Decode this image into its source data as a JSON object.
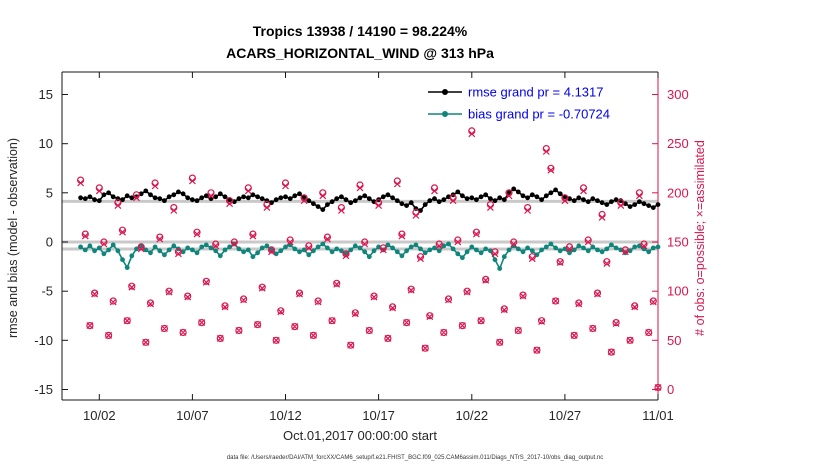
{
  "footer": {
    "text": "data file: /Users/raeder/DAI/ATM_forcXX/CAM6_setup/f.e21.FHIST_BGC.f09_025.CAM6assim.011/Diags_NTrS_2017-10/obs_diag_output.nc"
  },
  "chart_data": {
    "type": "line+scatter",
    "title": "Tropics 13938 / 14190 = 98.224%",
    "subtitle": "ACARS_HORIZONTAL_WIND @ 313 hPa",
    "xlabel": "Oct.01,2017 00:00:00 start",
    "ylabel_left": "rmse and bias (model - observation)",
    "ylabel_right": "# of obs: o=possible; ×=assimilated",
    "legend": [
      {
        "series": "rmse",
        "label": "rmse grand pr = 4.1317"
      },
      {
        "series": "bias",
        "label": "bias grand pr = -0.70724"
      }
    ],
    "stats": {
      "region": "Tropics",
      "assimilated_total": 13938,
      "possible_total": 14190,
      "assimilated_pct": 98.224,
      "rmse_grand": 4.1317,
      "bias_grand": -0.70724,
      "level": "313 hPa",
      "variable": "ACARS_HORIZONTAL_WIND"
    },
    "x_axis": {
      "domain": [
        0,
        32
      ],
      "ticks": [
        {
          "v": 2,
          "label": "10/02"
        },
        {
          "v": 7,
          "label": "10/07"
        },
        {
          "v": 12,
          "label": "10/12"
        },
        {
          "v": 17,
          "label": "10/17"
        },
        {
          "v": 22,
          "label": "10/22"
        },
        {
          "v": 27,
          "label": "10/27"
        },
        {
          "v": 32,
          "label": "11/01"
        }
      ]
    },
    "y_left": {
      "ticks": [
        -15,
        -10,
        -5,
        0,
        5,
        10,
        15
      ]
    },
    "y_right": {
      "ticks": [
        0,
        50,
        100,
        150,
        200,
        250,
        300
      ]
    },
    "reference_lines": [
      0,
      4.1317,
      -0.70724
    ],
    "colors": {
      "rmse": "#000000",
      "bias": "#0f857b",
      "obs": "#d9164e",
      "legend_text": "#0000ee",
      "ref": "#c9c9c9",
      "axis": "#151515",
      "tick_text": "#262626"
    },
    "x_start": 1.0,
    "x_step": 0.25,
    "series": {
      "rmse": [
        4.5,
        4.4,
        4.6,
        4.3,
        4.2,
        4.8,
        5.0,
        4.6,
        4.4,
        4.3,
        4.7,
        4.5,
        4.6,
        4.9,
        5.2,
        4.8,
        4.5,
        4.4,
        4.2,
        4.6,
        4.8,
        5.1,
        4.9,
        4.5,
        4.3,
        4.2,
        4.5,
        4.7,
        4.4,
        4.6,
        4.9,
        4.6,
        4.3,
        4.1,
        4.4,
        4.6,
        4.5,
        4.8,
        4.6,
        4.4,
        4.2,
        4.0,
        4.3,
        4.5,
        4.6,
        4.4,
        4.7,
        4.9,
        4.5,
        4.2,
        3.9,
        3.6,
        3.3,
        3.8,
        4.1,
        4.4,
        4.6,
        4.3,
        4.0,
        4.2,
        4.5,
        4.7,
        4.4,
        4.1,
        4.3,
        4.6,
        4.8,
        4.5,
        4.2,
        3.9,
        3.7,
        4.0,
        3.4,
        3.2,
        3.8,
        4.2,
        4.4,
        4.1,
        4.3,
        4.6,
        4.8,
        5.1,
        4.7,
        4.4,
        4.5,
        4.3,
        4.6,
        4.8,
        4.4,
        4.2,
        4.5,
        4.3,
        5.0,
        5.4,
        5.1,
        4.7,
        4.5,
        4.8,
        4.6,
        4.3,
        4.7,
        5.0,
        5.3,
        4.9,
        4.6,
        4.4,
        4.2,
        4.5,
        4.3,
        4.1,
        4.4,
        4.2,
        4.0,
        3.8,
        4.1,
        4.3,
        4.2,
        3.9,
        3.6,
        3.8,
        4.1,
        3.9,
        3.7,
        3.5,
        3.8
      ],
      "bias": [
        -0.5,
        -0.8,
        -0.4,
        -0.9,
        -0.6,
        -1.2,
        -0.8,
        -0.3,
        -0.9,
        -1.8,
        -2.6,
        -1.4,
        -0.7,
        -0.4,
        -0.8,
        -1.1,
        -0.5,
        -0.9,
        -1.3,
        -0.8,
        -0.4,
        -0.7,
        -1.0,
        -0.6,
        -0.8,
        -1.1,
        -0.5,
        -0.3,
        -0.6,
        -0.9,
        -1.4,
        -0.8,
        -0.5,
        -0.2,
        -0.7,
        -1.0,
        -0.8,
        -1.5,
        -1.1,
        -0.6,
        -0.4,
        -0.8,
        -1.2,
        -0.9,
        -0.5,
        -0.3,
        -0.7,
        -1.0,
        -0.8,
        -1.3,
        -0.9,
        -0.5,
        -0.2,
        -0.6,
        -1.0,
        -0.7,
        -0.9,
        -1.2,
        -0.8,
        -0.4,
        -0.6,
        -1.0,
        -1.5,
        -0.9,
        -0.5,
        -0.8,
        -0.3,
        -0.6,
        -1.0,
        -1.4,
        -0.9,
        -0.5,
        -0.3,
        -0.7,
        -1.1,
        -0.8,
        -0.6,
        -0.9,
        -0.4,
        -0.2,
        -0.7,
        -1.2,
        -1.6,
        -1.0,
        -0.5,
        -0.8,
        -1.1,
        -0.7,
        -0.9,
        -1.8,
        -2.7,
        -1.5,
        -0.8,
        -0.4,
        -0.7,
        -1.0,
        -0.6,
        -0.9,
        -1.3,
        -0.8,
        -0.5,
        -0.2,
        -0.6,
        -0.9,
        -0.7,
        -1.1,
        -0.8,
        -0.4,
        -0.6,
        -0.9,
        -0.5,
        -0.8,
        -1.0,
        -0.7,
        -0.3,
        -0.6,
        -0.8,
        -1.1,
        -0.9,
        -0.5,
        -0.4,
        -0.7,
        -1.0,
        -0.6,
        -0.5
      ],
      "obs_possible": [
        213,
        158,
        65,
        98,
        205,
        150,
        55,
        90,
        190,
        162,
        70,
        105,
        198,
        145,
        48,
        88,
        210,
        155,
        62,
        100,
        185,
        140,
        58,
        95,
        215,
        160,
        68,
        110,
        200,
        148,
        52,
        85,
        192,
        150,
        60,
        92,
        205,
        158,
        66,
        104,
        188,
        142,
        50,
        80,
        210,
        152,
        64,
        98,
        195,
        146,
        55,
        90,
        200,
        155,
        70,
        108,
        185,
        138,
        45,
        78,
        208,
        150,
        60,
        95,
        190,
        144,
        52,
        84,
        212,
        158,
        68,
        102,
        180,
        135,
        42,
        75,
        205,
        148,
        58,
        92,
        195,
        152,
        65,
        100,
        263,
        160,
        70,
        112,
        188,
        140,
        48,
        82,
        200,
        150,
        60,
        96,
        185,
        135,
        40,
        70,
        245,
        225,
        90,
        130,
        195,
        145,
        55,
        88,
        205,
        152,
        62,
        98,
        178,
        130,
        38,
        68,
        190,
        142,
        50,
        85,
        200,
        148,
        58,
        90,
        2
      ],
      "obs_assimilated": [
        210,
        156,
        65,
        97,
        202,
        148,
        55,
        89,
        187,
        160,
        70,
        104,
        195,
        143,
        48,
        87,
        207,
        153,
        62,
        99,
        182,
        138,
        58,
        94,
        212,
        158,
        68,
        109,
        197,
        146,
        52,
        84,
        189,
        148,
        60,
        91,
        202,
        156,
        66,
        103,
        185,
        140,
        50,
        79,
        207,
        150,
        64,
        97,
        192,
        144,
        55,
        89,
        197,
        153,
        70,
        107,
        182,
        136,
        45,
        77,
        205,
        148,
        60,
        94,
        187,
        142,
        52,
        83,
        209,
        156,
        68,
        101,
        177,
        133,
        42,
        74,
        202,
        146,
        58,
        91,
        192,
        150,
        65,
        99,
        260,
        158,
        70,
        111,
        185,
        138,
        48,
        81,
        197,
        148,
        60,
        95,
        182,
        133,
        40,
        69,
        242,
        223,
        90,
        129,
        192,
        143,
        55,
        87,
        202,
        150,
        62,
        97,
        175,
        128,
        38,
        67,
        187,
        140,
        50,
        84,
        197,
        146,
        58,
        89,
        2
      ]
    }
  }
}
